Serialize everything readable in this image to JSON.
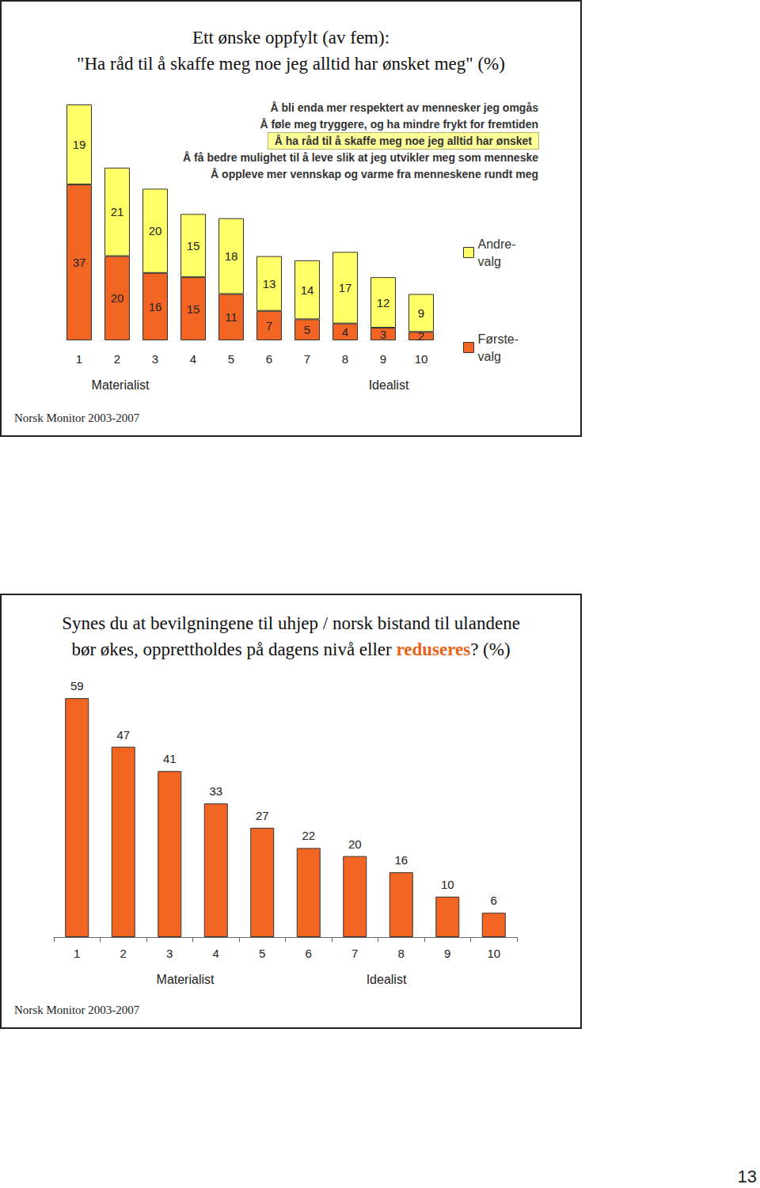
{
  "chart_data": [
    {
      "type": "bar",
      "title": "Ett ønske oppfylt (av fem):\n\"Ha råd til å skaffe meg noe jeg alltid har ønsket meg\" (%)",
      "answer_options": [
        "Å bli enda mer respektert av mennesker jeg omgås",
        "Å føle meg tryggere, og ha mindre frykt for fremtiden",
        "Å ha råd til å skaffe meg noe jeg alltid har ønsket",
        "Å få bedre mulighet til å leve slik at jeg utvikler meg som menneske",
        "Å oppleve mer vennskap og varme fra menneskene rundt meg"
      ],
      "categories": [
        "1",
        "2",
        "3",
        "4",
        "5",
        "6",
        "7",
        "8",
        "9",
        "10"
      ],
      "series": [
        {
          "name": "Første-\nvalg",
          "color": "#f26522",
          "values": [
            37,
            20,
            16,
            15,
            11,
            7,
            5,
            4,
            3,
            2
          ]
        },
        {
          "name": "Andre-\nvalg",
          "color": "#ffff66",
          "values": [
            19,
            21,
            20,
            15,
            18,
            13,
            14,
            17,
            12,
            9
          ]
        }
      ],
      "stacked": true,
      "ylim": [
        0,
        56
      ],
      "data_labels": true,
      "tick_labels": "x",
      "grid": false,
      "legend": "right",
      "annotations": [
        "Materialist",
        "Idealist"
      ],
      "source": "Norsk Monitor 2003-2007"
    },
    {
      "type": "bar",
      "title": "Synes du at bevilgningene til uhjep / norsk bistand til ulandene\nbør økes, opprettholdes på dagens nivå eller reduseres? (%)",
      "title_emphasis": "reduseres",
      "categories": [
        "1",
        "2",
        "3",
        "4",
        "5",
        "6",
        "7",
        "8",
        "9",
        "10"
      ],
      "values": [
        59,
        47,
        41,
        33,
        27,
        22,
        20,
        16,
        10,
        6
      ],
      "color": "#f26522",
      "ylim": [
        0,
        60
      ],
      "data_labels": true,
      "tick_labels": "x",
      "grid": false,
      "annotations": [
        "Materialist",
        "Idealist"
      ],
      "source": "Norsk Monitor 2003-2007"
    }
  ],
  "page_number": "13"
}
